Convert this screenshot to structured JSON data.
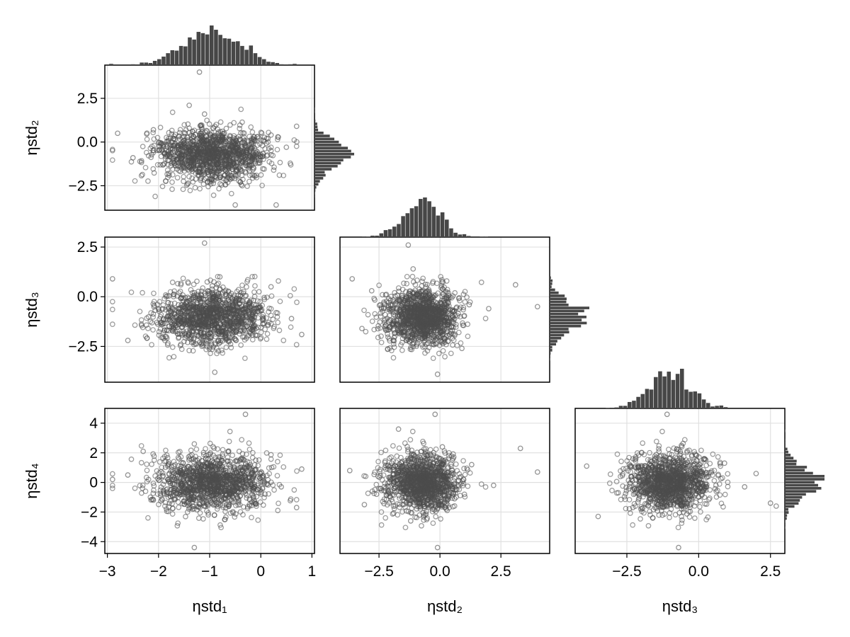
{
  "chart_data": {
    "type": "scatter",
    "layout": "corner-plot",
    "variables": [
      "ηstd₁",
      "ηstd₂",
      "ηstd₃",
      "ηstd₄"
    ],
    "colors": {
      "marker": "#4d4d4d",
      "histogram": "#474747",
      "grid": "#e0e0e0",
      "frame": "#000000"
    },
    "distributions": {
      "ηstd₁": {
        "center": -0.95,
        "spread": 0.55,
        "range": [
          -2.9,
          0.9
        ]
      },
      "ηstd₂": {
        "center": -0.7,
        "spread": 0.75,
        "range": [
          -3.6,
          4.0
        ]
      },
      "ηstd₃": {
        "center": -1.0,
        "spread": 0.7,
        "range": [
          -3.9,
          2.7
        ]
      },
      "ηstd₄": {
        "center": 0.0,
        "spread": 0.95,
        "range": [
          -4.4,
          4.5
        ]
      }
    },
    "panels": [
      {
        "id": "eta2-vs-eta1",
        "x_var": "ηstd₁",
        "y_var": "ηstd₂",
        "xlim": [
          -3.05,
          1.05
        ],
        "ylim": [
          -3.9,
          4.4
        ],
        "x_ticks": [],
        "y_ticks": [
          "2.5",
          "0.0",
          "−2.5"
        ],
        "y_tick_values": [
          2.5,
          0.0,
          -2.5
        ],
        "y_label": "ηstd₂",
        "points": [
          [
            -1.05,
            -0.4
          ],
          [
            -0.6,
            0.3
          ],
          [
            -1.3,
            -1.2
          ],
          [
            -0.9,
            0.9
          ],
          [
            -1.5,
            0.1
          ],
          [
            -0.2,
            -0.8
          ],
          [
            -1.8,
            -0.5
          ],
          [
            0.2,
            0.4
          ],
          [
            -1.1,
            1.6
          ],
          [
            -0.7,
            -1.9
          ],
          [
            -2.1,
            0.7
          ],
          [
            0.5,
            -0.3
          ],
          [
            -1.4,
            2.1
          ],
          [
            -0.4,
            -2.3
          ],
          [
            -2.5,
            -0.9
          ],
          [
            0.7,
            0.9
          ],
          [
            -1.2,
            4.0
          ],
          [
            -0.5,
            -3.6
          ],
          [
            -2.8,
            0.5
          ],
          [
            0.3,
            -3.6
          ]
        ]
      },
      {
        "id": "eta3-vs-eta1",
        "x_var": "ηstd₁",
        "y_var": "ηstd₃",
        "xlim": [
          -3.05,
          1.05
        ],
        "ylim": [
          -4.3,
          3.0
        ],
        "x_ticks": [],
        "y_ticks": [
          "2.5",
          "0.0",
          "−2.5"
        ],
        "y_tick_values": [
          2.5,
          0.0,
          -2.5
        ],
        "y_label": "ηstd₃",
        "points": [
          [
            -1.0,
            -0.9
          ],
          [
            -0.5,
            -0.2
          ],
          [
            -1.6,
            -1.4
          ],
          [
            -0.2,
            -1.6
          ],
          [
            -1.3,
            0.2
          ],
          [
            0.3,
            -0.8
          ],
          [
            -2.0,
            -0.6
          ],
          [
            -0.8,
            1.0
          ],
          [
            -1.9,
            -2.1
          ],
          [
            0.6,
            -1.1
          ],
          [
            -1.1,
            2.7
          ],
          [
            -0.9,
            -3.8
          ],
          [
            -2.9,
            0.9
          ],
          [
            0.8,
            -1.9
          ],
          [
            -2.6,
            -2.2
          ],
          [
            0.2,
            0.5
          ]
        ]
      },
      {
        "id": "eta3-vs-eta2",
        "x_var": "ηstd₂",
        "y_var": "ηstd₃",
        "xlim": [
          -4.1,
          4.5
        ],
        "ylim": [
          -4.3,
          3.0
        ],
        "x_ticks": [],
        "y_ticks": [],
        "points": [
          [
            -0.7,
            -0.9
          ],
          [
            -1.5,
            -0.3
          ],
          [
            0.3,
            -1.4
          ],
          [
            -2.1,
            -0.1
          ],
          [
            1.2,
            -0.4
          ],
          [
            -0.6,
            -2.0
          ],
          [
            -2.8,
            0.3
          ],
          [
            2.0,
            -0.6
          ],
          [
            -1.1,
            1.4
          ],
          [
            0.9,
            -2.6
          ],
          [
            -1.3,
            2.6
          ],
          [
            -0.1,
            -3.9
          ],
          [
            -3.6,
            0.9
          ],
          [
            4.0,
            -0.5
          ],
          [
            3.1,
            0.6
          ],
          [
            -3.2,
            -1.6
          ]
        ]
      },
      {
        "id": "eta4-vs-eta1",
        "x_var": "ηstd₁",
        "y_var": "ηstd₄",
        "xlim": [
          -3.05,
          1.05
        ],
        "ylim": [
          -4.8,
          5.0
        ],
        "x_ticks": [
          "−3",
          "−2",
          "−1",
          "0",
          "1"
        ],
        "x_tick_values": [
          -3,
          -2,
          -1,
          0,
          1
        ],
        "y_ticks": [
          "4",
          "2",
          "0",
          "−2",
          "−4"
        ],
        "y_tick_values": [
          4,
          2,
          0,
          -2,
          -4
        ],
        "x_label": "ηstd₁",
        "y_label": "ηstd₄",
        "points": [
          [
            -1.0,
            0.1
          ],
          [
            -0.4,
            -0.9
          ],
          [
            -1.7,
            1.1
          ],
          [
            -0.1,
            1.5
          ],
          [
            -2.1,
            -1.2
          ],
          [
            0.4,
            -0.3
          ],
          [
            -1.3,
            2.6
          ],
          [
            -0.7,
            -2.5
          ],
          [
            -2.6,
            0.5
          ],
          [
            0.8,
            0.9
          ],
          [
            -0.3,
            4.6
          ],
          [
            -1.3,
            -4.4
          ],
          [
            -2.9,
            0.2
          ],
          [
            0.7,
            -1.7
          ],
          [
            -2.3,
            2.1
          ]
        ]
      },
      {
        "id": "eta4-vs-eta2",
        "x_var": "ηstd₂",
        "y_var": "ηstd₄",
        "xlim": [
          -4.1,
          4.5
        ],
        "ylim": [
          -4.8,
          5.0
        ],
        "x_ticks": [
          "−2.5",
          "0.0",
          "2.5"
        ],
        "x_tick_values": [
          -2.5,
          0.0,
          2.5
        ],
        "y_ticks": [],
        "x_label": "ηstd₂",
        "points": [
          [
            -0.7,
            0.0
          ],
          [
            0.6,
            -1.1
          ],
          [
            -1.9,
            0.9
          ],
          [
            1.3,
            1.2
          ],
          [
            -2.6,
            -0.8
          ],
          [
            0.1,
            2.4
          ],
          [
            -1.2,
            -2.6
          ],
          [
            2.2,
            -0.2
          ],
          [
            -0.2,
            4.6
          ],
          [
            -0.1,
            -4.4
          ],
          [
            -3.7,
            0.8
          ],
          [
            4.0,
            0.7
          ],
          [
            3.3,
            2.3
          ],
          [
            -3.1,
            -1.5
          ],
          [
            -1.7,
            3.6
          ]
        ]
      },
      {
        "id": "eta4-vs-eta3",
        "x_var": "ηstd₃",
        "y_var": "ηstd₄",
        "xlim": [
          -4.3,
          3.0
        ],
        "ylim": [
          -4.8,
          5.0
        ],
        "x_ticks": [
          "−2.5",
          "0.0",
          "2.5"
        ],
        "x_tick_values": [
          -2.5,
          0.0,
          2.5
        ],
        "y_ticks": [],
        "x_label": "ηstd₃",
        "points": [
          [
            -1.0,
            0.0
          ],
          [
            0.2,
            -1.0
          ],
          [
            -2.1,
            1.0
          ],
          [
            0.9,
            1.3
          ],
          [
            -2.8,
            -0.7
          ],
          [
            -0.6,
            2.5
          ],
          [
            -1.6,
            -2.4
          ],
          [
            1.6,
            -0.3
          ],
          [
            -1.1,
            4.6
          ],
          [
            -0.7,
            -4.4
          ],
          [
            -3.9,
            1.1
          ],
          [
            2.7,
            -1.6
          ],
          [
            2.5,
            -1.4
          ],
          [
            -3.5,
            -2.3
          ],
          [
            2.0,
            0.6
          ]
        ]
      }
    ]
  }
}
